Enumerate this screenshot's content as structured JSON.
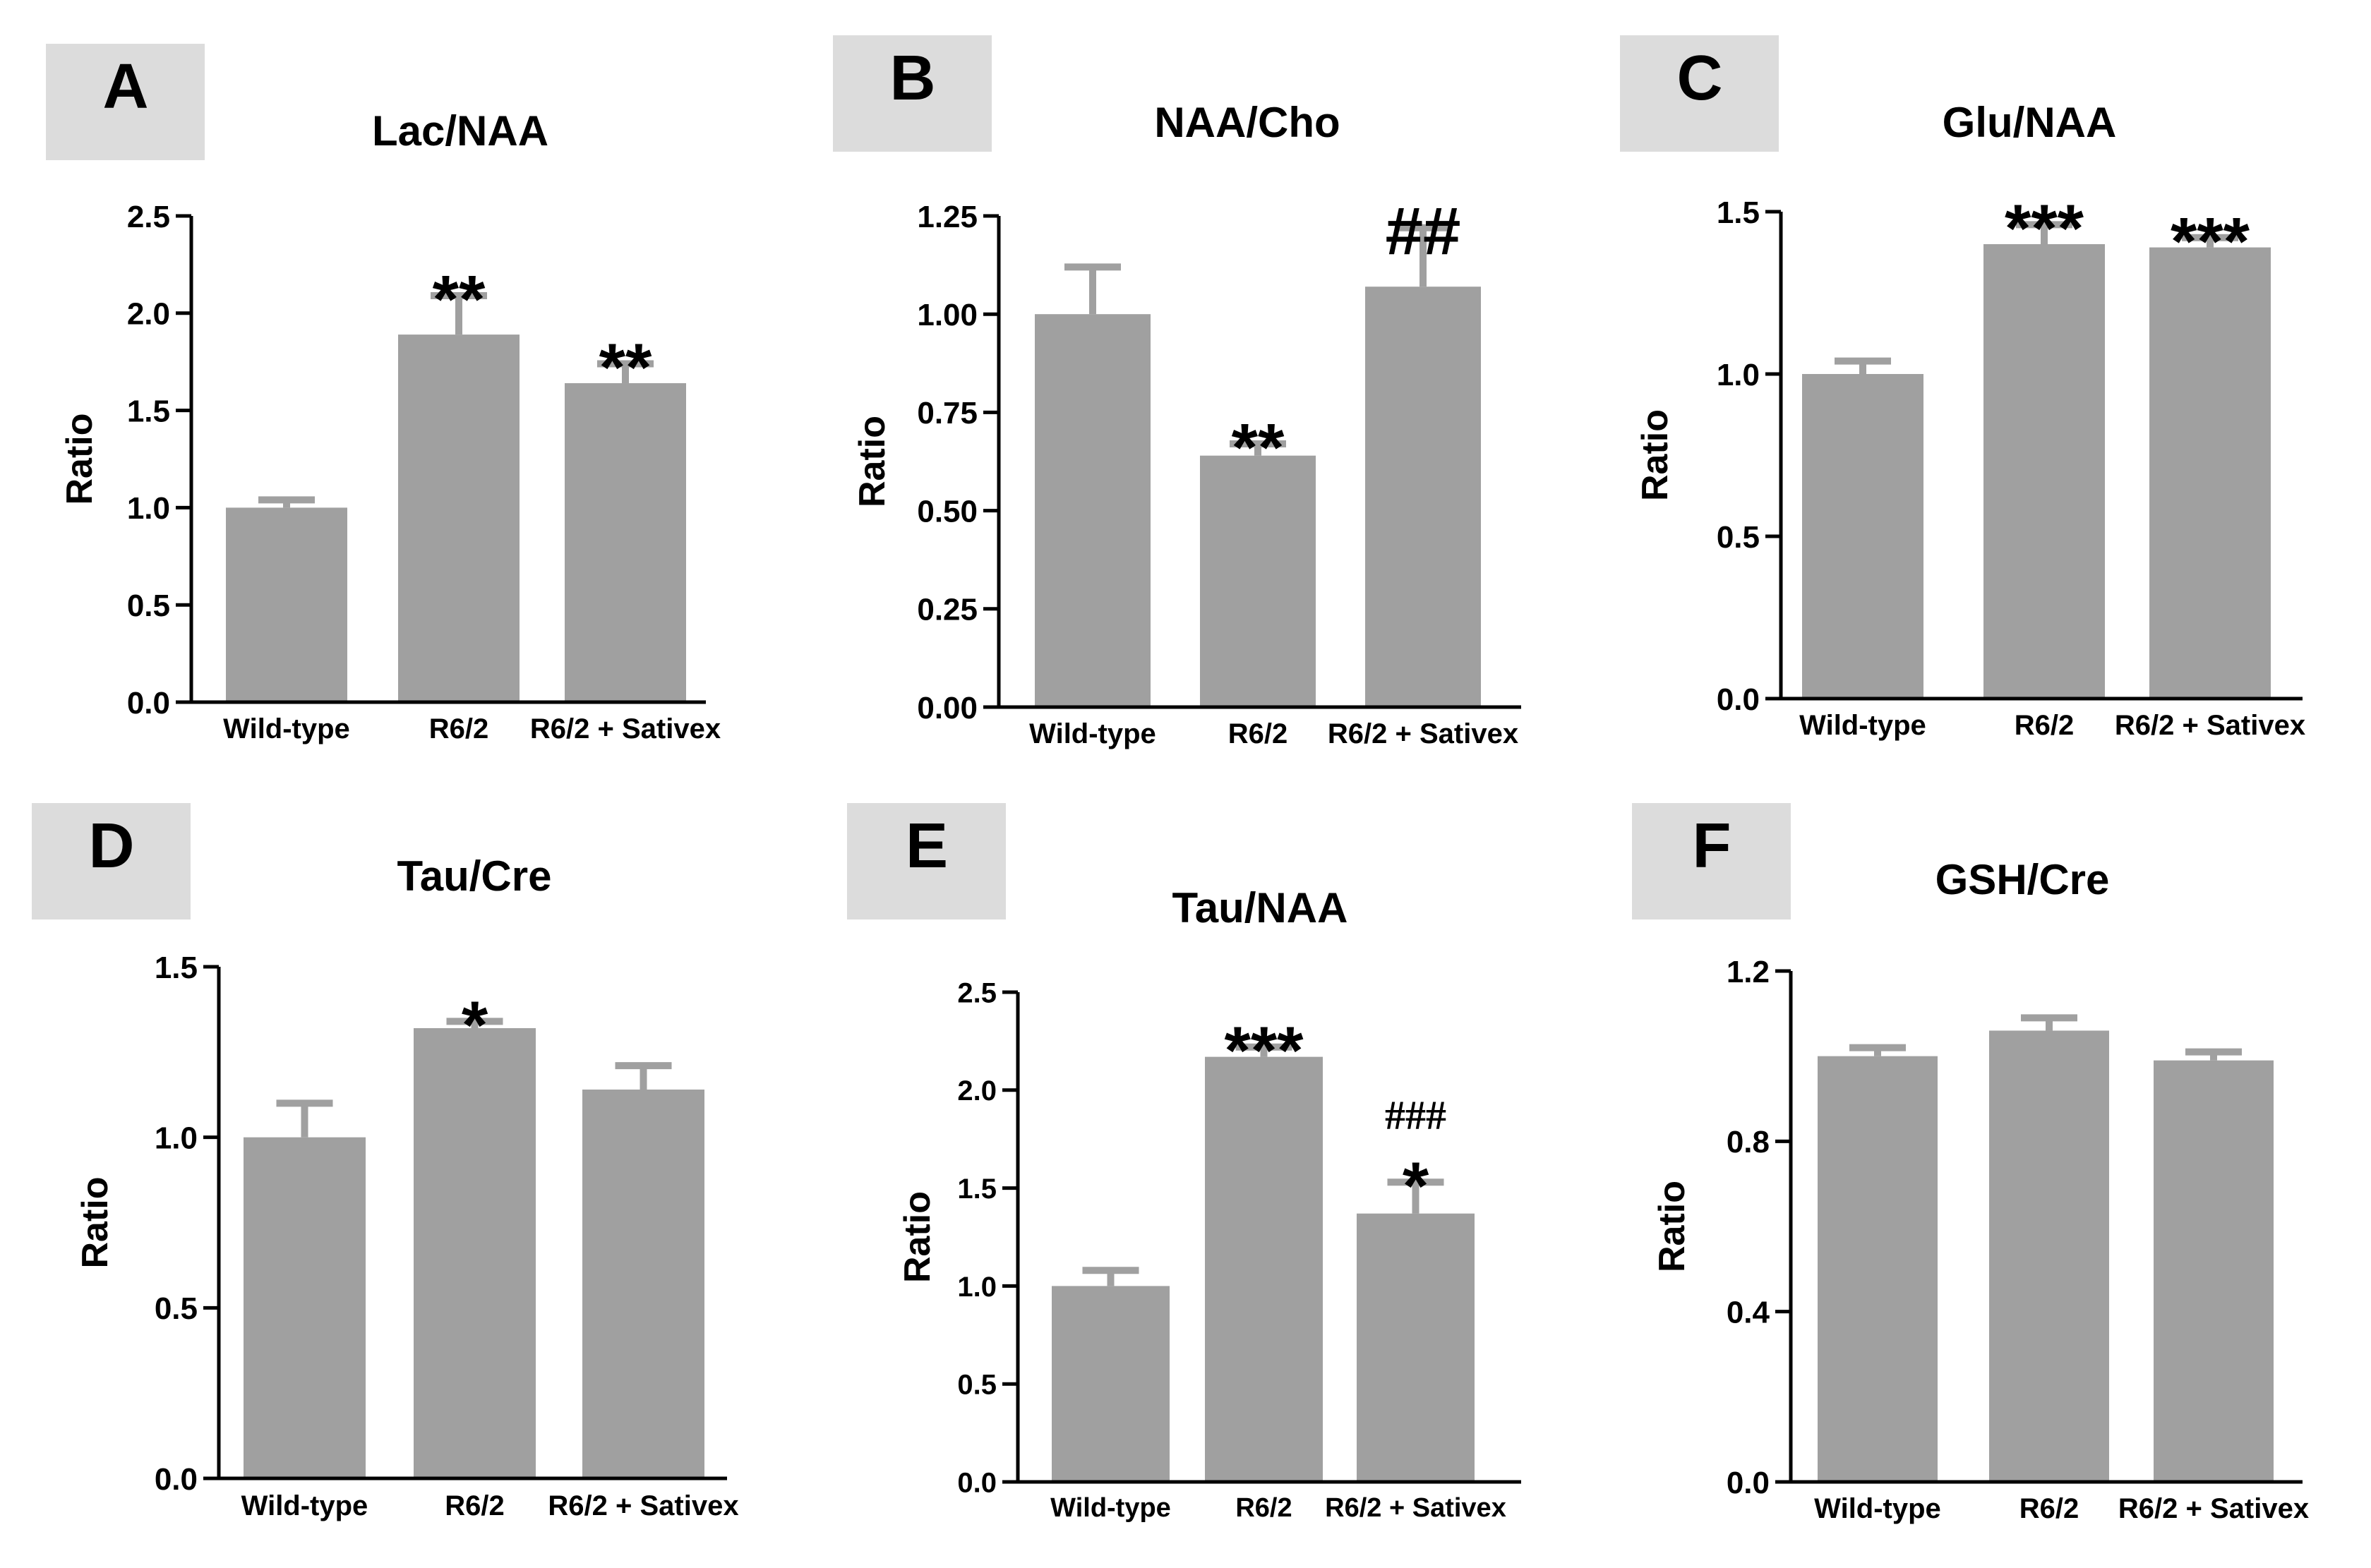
{
  "colors": {
    "bar": "#a0a0a0",
    "label_box": "#dcdcdc",
    "axis": "#000000"
  },
  "chart_data": [
    {
      "type": "bar",
      "panel": "A",
      "title": "Lac/NAA",
      "ylabel": "Ratio",
      "ylim": [
        0,
        2.5
      ],
      "yticks": [
        "0.0",
        "0.5",
        "1.0",
        "1.5",
        "2.0",
        "2.5"
      ],
      "categories": [
        "Wild-type",
        "R6/2",
        "R6/2 + Sativex"
      ],
      "values": [
        1.0,
        1.89,
        1.64
      ],
      "errors": [
        0.04,
        0.2,
        0.1
      ],
      "annotations": [
        "",
        "**",
        "**"
      ]
    },
    {
      "type": "bar",
      "panel": "B",
      "title": "NAA/Cho",
      "ylabel": "Ratio",
      "ylim": [
        0,
        1.25
      ],
      "yticks": [
        "0.00",
        "0.25",
        "0.50",
        "0.75",
        "1.00",
        "1.25"
      ],
      "categories": [
        "Wild-type",
        "R6/2",
        "R6/2 + Sativex"
      ],
      "values": [
        1.0,
        0.64,
        1.07
      ],
      "errors": [
        0.12,
        0.03,
        0.15
      ],
      "annotations": [
        "",
        "**",
        "##"
      ]
    },
    {
      "type": "bar",
      "panel": "C",
      "title": "Glu/NAA",
      "ylabel": "Ratio",
      "ylim": [
        0,
        1.5
      ],
      "yticks": [
        "0.0",
        "0.5",
        "1.0",
        "1.5"
      ],
      "categories": [
        "Wild-type",
        "R6/2",
        "R6/2 + Sativex"
      ],
      "values": [
        1.0,
        1.4,
        1.39
      ],
      "errors": [
        0.04,
        0.06,
        0.03
      ],
      "annotations": [
        "",
        "***",
        "***"
      ]
    },
    {
      "type": "bar",
      "panel": "D",
      "title": "Tau/Cre",
      "ylabel": "Ratio",
      "ylim": [
        0,
        1.5
      ],
      "yticks": [
        "0.0",
        "0.5",
        "1.0",
        "1.5"
      ],
      "categories": [
        "Wild-type",
        "R6/2",
        "R6/2 + Sativex"
      ],
      "values": [
        1.0,
        1.32,
        1.14
      ],
      "errors": [
        0.1,
        0.02,
        0.07
      ],
      "annotations": [
        "",
        "*",
        ""
      ]
    },
    {
      "type": "bar",
      "panel": "E",
      "title": "Tau/NAA",
      "ylabel": "Ratio",
      "ylim": [
        0,
        2.5
      ],
      "yticks": [
        "0.0",
        "0.5",
        "1.0",
        "1.5",
        "2.0",
        "2.5"
      ],
      "categories": [
        "Wild-type",
        "R6/2",
        "R6/2 + Sativex"
      ],
      "values": [
        1.0,
        2.17,
        1.37
      ],
      "errors": [
        0.08,
        0.05,
        0.16
      ],
      "annotations": [
        "",
        "***",
        "*"
      ],
      "annotations_hash": [
        "",
        "",
        "###"
      ]
    },
    {
      "type": "bar",
      "panel": "F",
      "title": "GSH/Cre",
      "ylabel": "Ratio",
      "ylim": [
        0,
        1.2
      ],
      "yticks": [
        "0.0",
        "0.4",
        "0.8",
        "1.2"
      ],
      "categories": [
        "Wild-type",
        "R6/2",
        "R6/2 + Sativex"
      ],
      "values": [
        1.0,
        1.06,
        0.99
      ],
      "errors": [
        0.02,
        0.03,
        0.02
      ],
      "annotations": [
        "",
        "",
        ""
      ]
    }
  ]
}
